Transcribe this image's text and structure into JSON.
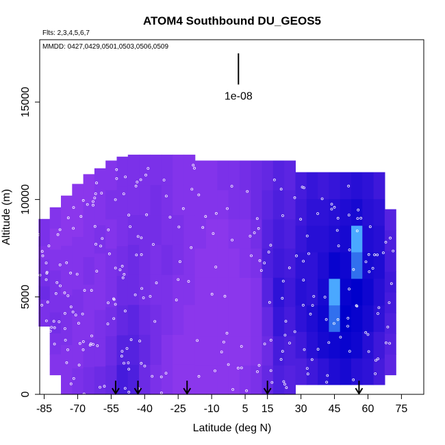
{
  "chart_data": {
    "type": "heatmap",
    "title": "ATOM4 Southbound DU_GEOS5",
    "flights_note": "Flts: 2,3,4,5,6,7",
    "dates_note": "MMDD: 0427,0429,0501,0503,0506,0509",
    "xlabel": "Latitude (deg N)",
    "ylabel": "Altitude (m)",
    "xlim": [
      -87,
      85
    ],
    "ylim": [
      0,
      18200
    ],
    "x_tick_labels": [
      "-85",
      "-70",
      "-55",
      "-40",
      "-25",
      "-10",
      "5",
      "15",
      "30",
      "45",
      "60",
      "75"
    ],
    "x_tick_values": [
      -85,
      -70,
      -55,
      -40,
      -25,
      -10,
      5,
      15,
      30,
      45,
      60,
      75
    ],
    "y_tick_labels": [
      "0",
      "5000",
      "10000",
      "15000"
    ],
    "y_tick_values": [
      0,
      5000,
      10000,
      15000
    ],
    "scale_bar_label": "1e-08",
    "scale_bar_x": 2,
    "scale_bar_y_range": [
      15900,
      17500
    ],
    "profile_arrow_latitudes": [
      -53,
      -43,
      -21,
      15,
      56
    ],
    "grid": false,
    "colors": {
      "background_field": "#8a2be2",
      "low_values": "#9a3df0",
      "high_values": "#0000cc",
      "peak_values": "#4aa8ff",
      "sample_points": "#ffffff"
    },
    "columns": [
      {
        "lat": -85,
        "top": 9000,
        "bottom": 3500,
        "values": [
          0.2,
          0.2,
          0.3,
          0.25,
          0.2,
          0.15,
          0.2,
          0.2
        ]
      },
      {
        "lat": -80,
        "top": 9600,
        "bottom": 1000,
        "values": [
          0.15,
          0.2,
          0.25,
          0.2,
          0.2,
          0.15,
          0.1,
          0.15
        ]
      },
      {
        "lat": -75,
        "top": 10200,
        "bottom": 0,
        "values": [
          0.15,
          0.15,
          0.2,
          0.2,
          0.15,
          0.15,
          0.1,
          0.1
        ]
      },
      {
        "lat": -70,
        "top": 10800,
        "bottom": 0,
        "values": [
          0.2,
          0.15,
          0.15,
          0.2,
          0.15,
          0.15,
          0.1,
          0.1
        ]
      },
      {
        "lat": -65,
        "top": 11300,
        "bottom": 0,
        "values": [
          0.25,
          0.2,
          0.15,
          0.15,
          0.2,
          0.15,
          0.15,
          0.1
        ]
      },
      {
        "lat": -60,
        "top": 11600,
        "bottom": 0,
        "values": [
          0.3,
          0.2,
          0.2,
          0.15,
          0.15,
          0.2,
          0.15,
          0.15
        ]
      },
      {
        "lat": -55,
        "top": 12000,
        "bottom": 0,
        "values": [
          0.35,
          0.3,
          0.25,
          0.2,
          0.2,
          0.15,
          0.2,
          0.15
        ]
      },
      {
        "lat": -50,
        "top": 12200,
        "bottom": 0,
        "values": [
          0.55,
          0.45,
          0.35,
          0.3,
          0.25,
          0.2,
          0.2,
          0.2
        ]
      },
      {
        "lat": -45,
        "top": 12300,
        "bottom": 0,
        "values": [
          0.5,
          0.45,
          0.4,
          0.3,
          0.3,
          0.25,
          0.2,
          0.2
        ]
      },
      {
        "lat": -40,
        "top": 12300,
        "bottom": 0,
        "values": [
          0.3,
          0.35,
          0.3,
          0.25,
          0.25,
          0.25,
          0.2,
          0.2
        ]
      },
      {
        "lat": -35,
        "top": 12300,
        "bottom": 0,
        "values": [
          0.2,
          0.25,
          0.25,
          0.2,
          0.2,
          0.25,
          0.25,
          0.2
        ]
      },
      {
        "lat": -30,
        "top": 12300,
        "bottom": 0,
        "values": [
          0.15,
          0.15,
          0.2,
          0.2,
          0.25,
          0.2,
          0.2,
          0.2
        ]
      },
      {
        "lat": -25,
        "top": 12300,
        "bottom": 0,
        "values": [
          0.1,
          0.1,
          0.15,
          0.15,
          0.2,
          0.2,
          0.15,
          0.15
        ]
      },
      {
        "lat": -20,
        "top": 12300,
        "bottom": 0,
        "values": [
          0.1,
          0.1,
          0.1,
          0.15,
          0.15,
          0.15,
          0.15,
          0.15
        ]
      },
      {
        "lat": -15,
        "top": 12000,
        "bottom": 0,
        "values": [
          0.1,
          0.1,
          0.1,
          0.1,
          0.1,
          0.15,
          0.15,
          0.15
        ]
      },
      {
        "lat": -10,
        "top": 12000,
        "bottom": 0,
        "values": [
          0.1,
          0.1,
          0.1,
          0.1,
          0.1,
          0.1,
          0.15,
          0.15
        ]
      },
      {
        "lat": -5,
        "top": 12000,
        "bottom": 0,
        "values": [
          0.1,
          0.1,
          0.1,
          0.1,
          0.1,
          0.1,
          0.15,
          0.2
        ]
      },
      {
        "lat": 0,
        "top": 12000,
        "bottom": 0,
        "values": [
          0.1,
          0.1,
          0.1,
          0.1,
          0.1,
          0.15,
          0.2,
          0.2
        ]
      },
      {
        "lat": 5,
        "top": 12000,
        "bottom": 0,
        "values": [
          0.15,
          0.1,
          0.1,
          0.1,
          0.15,
          0.15,
          0.2,
          0.25
        ]
      },
      {
        "lat": 10,
        "top": 12000,
        "bottom": 0,
        "values": [
          0.2,
          0.15,
          0.15,
          0.15,
          0.2,
          0.25,
          0.3,
          0.3
        ]
      },
      {
        "lat": 15,
        "top": 12000,
        "bottom": 0,
        "values": [
          0.35,
          0.3,
          0.35,
          0.45,
          0.5,
          0.45,
          0.4,
          0.35
        ]
      },
      {
        "lat": 20,
        "top": 12000,
        "bottom": 0,
        "values": [
          0.5,
          0.55,
          0.65,
          0.7,
          0.6,
          0.55,
          0.5,
          0.45
        ]
      },
      {
        "lat": 25,
        "top": 12000,
        "bottom": 0,
        "values": [
          0.45,
          0.5,
          0.55,
          0.6,
          0.55,
          0.5,
          0.45,
          0.4
        ]
      },
      {
        "lat": 30,
        "top": 11400,
        "bottom": 500,
        "values": [
          0.5,
          0.6,
          0.7,
          0.75,
          0.7,
          0.65,
          0.6,
          0.55
        ]
      },
      {
        "lat": 35,
        "top": 11400,
        "bottom": 500,
        "values": [
          0.6,
          0.75,
          0.8,
          0.7,
          0.7,
          0.75,
          0.7,
          0.65
        ]
      },
      {
        "lat": 40,
        "top": 11400,
        "bottom": 500,
        "values": [
          0.7,
          0.85,
          0.9,
          0.85,
          0.8,
          0.75,
          0.7,
          0.6
        ]
      },
      {
        "lat": 45,
        "top": 11400,
        "bottom": 500,
        "values": [
          0.8,
          0.9,
          1.2,
          1.3,
          0.95,
          0.8,
          0.75,
          0.65
        ]
      },
      {
        "lat": 50,
        "top": 11400,
        "bottom": 500,
        "values": [
          0.85,
          0.95,
          1.0,
          0.95,
          0.9,
          0.85,
          0.8,
          0.7
        ]
      },
      {
        "lat": 55,
        "top": 11400,
        "bottom": 500,
        "values": [
          0.75,
          0.9,
          0.95,
          1.0,
          1.2,
          1.3,
          0.85,
          0.75
        ]
      },
      {
        "lat": 60,
        "top": 11400,
        "bottom": 500,
        "values": [
          0.7,
          0.75,
          0.85,
          0.9,
          0.85,
          0.8,
          0.75,
          0.7
        ]
      },
      {
        "lat": 65,
        "top": 11400,
        "bottom": 500,
        "values": [
          0.55,
          0.6,
          0.7,
          0.75,
          0.8,
          0.75,
          0.7,
          0.6
        ]
      },
      {
        "lat": 70,
        "top": 9500,
        "bottom": 1000,
        "values": [
          0.4,
          0.45,
          0.5,
          0.55,
          0.6,
          0.55,
          0.5,
          0.45
        ]
      }
    ]
  }
}
